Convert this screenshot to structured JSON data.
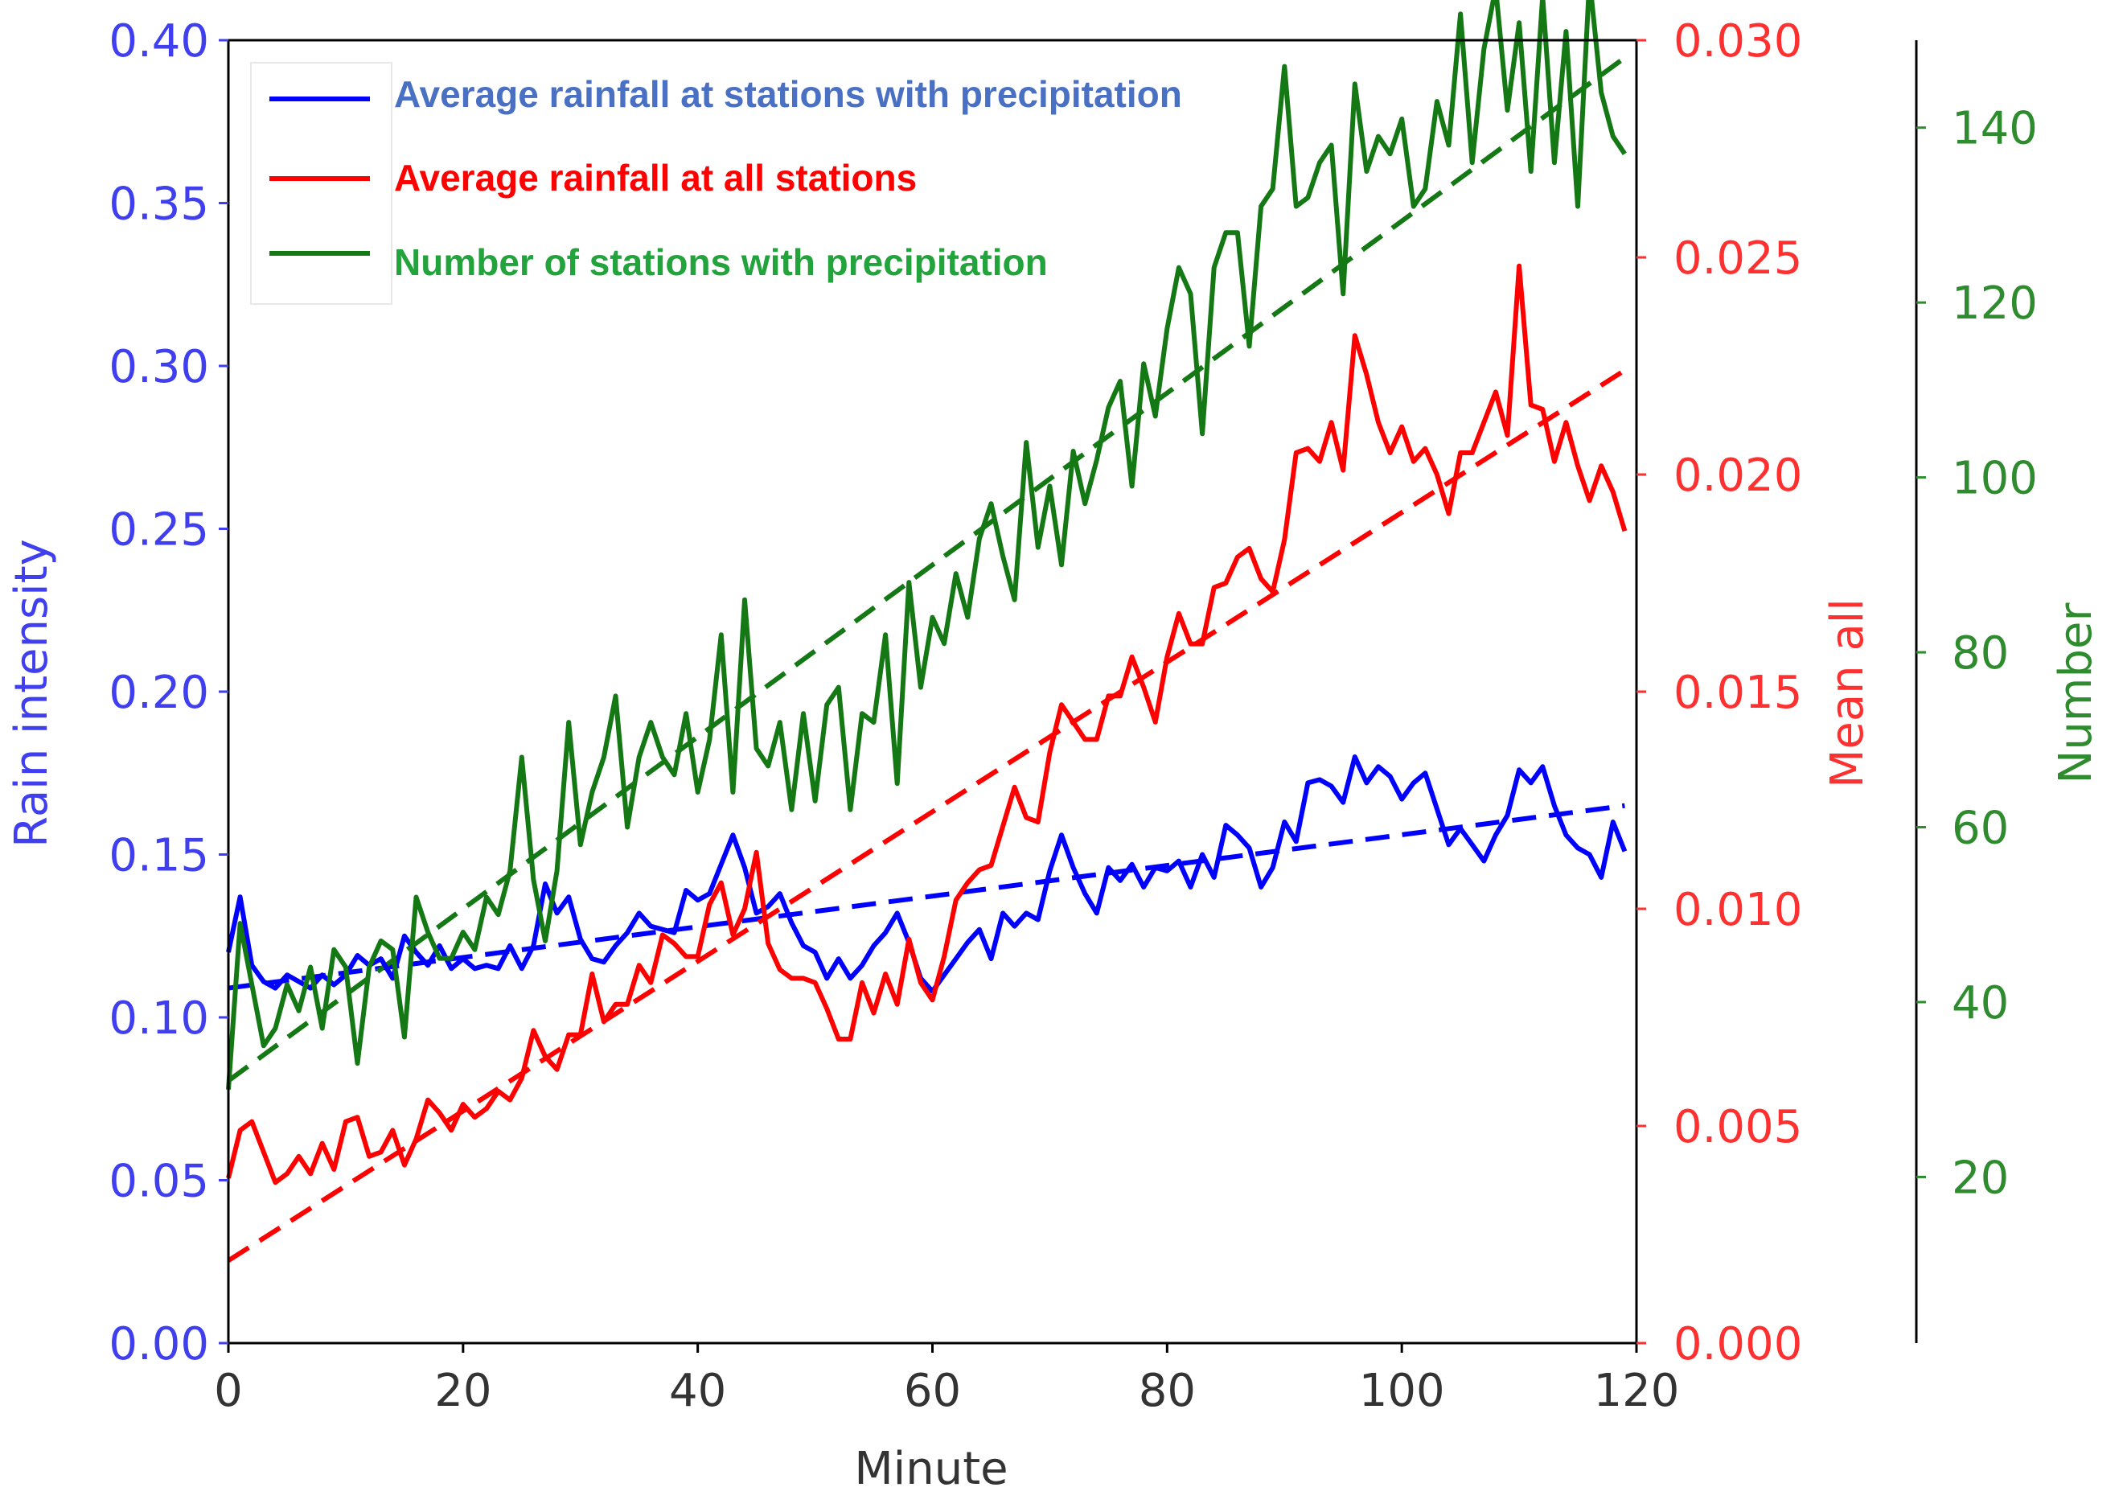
{
  "chart_data": {
    "type": "line",
    "xlabel": "Minute",
    "x": [
      0,
      1,
      2,
      3,
      4,
      5,
      6,
      7,
      8,
      9,
      10,
      11,
      12,
      13,
      14,
      15,
      16,
      17,
      18,
      19,
      20,
      21,
      22,
      23,
      24,
      25,
      26,
      27,
      28,
      29,
      30,
      31,
      32,
      33,
      34,
      35,
      36,
      37,
      38,
      39,
      40,
      41,
      42,
      43,
      44,
      45,
      46,
      47,
      48,
      49,
      50,
      51,
      52,
      53,
      54,
      55,
      56,
      57,
      58,
      59,
      60,
      61,
      62,
      63,
      64,
      65,
      66,
      67,
      68,
      69,
      70,
      71,
      72,
      73,
      74,
      75,
      76,
      77,
      78,
      79,
      80,
      81,
      82,
      83,
      84,
      85,
      86,
      87,
      88,
      89,
      90,
      91,
      92,
      93,
      94,
      95,
      96,
      97,
      98,
      99,
      100,
      101,
      102,
      103,
      104,
      105,
      106,
      107,
      108,
      109,
      110,
      111,
      112,
      113,
      114,
      115,
      116,
      117,
      118,
      119
    ],
    "xlim": [
      0,
      120
    ],
    "xticks": [
      "0",
      "20",
      "40",
      "60",
      "80",
      "100",
      "120"
    ],
    "axes": [
      {
        "id": "rain",
        "label": "Rain intensity",
        "side": "left",
        "color": "#3f3ff0",
        "ylim": [
          0.0,
          0.4
        ],
        "ticks": [
          "0.00",
          "0.05",
          "0.10",
          "0.15",
          "0.20",
          "0.25",
          "0.30",
          "0.35",
          "0.40"
        ]
      },
      {
        "id": "mean",
        "label": "Mean all",
        "side": "right",
        "color": "#ff3030",
        "ylim": [
          0.0,
          0.03
        ],
        "ticks": [
          "0.000",
          "0.005",
          "0.010",
          "0.015",
          "0.020",
          "0.025",
          "0.030"
        ]
      },
      {
        "id": "number",
        "label": "Number",
        "side": "right-outer",
        "color": "#2e8b2e",
        "ylim": [
          1,
          150
        ],
        "ticks": [
          "20",
          "40",
          "60",
          "80",
          "100",
          "120",
          "140"
        ]
      }
    ],
    "series": [
      {
        "name": "Average rainfall at stations with precipitation",
        "axis": "rain",
        "color": "#0000ff",
        "legend_text_color": "#4a70c4",
        "values": [
          0.12,
          0.137,
          0.116,
          0.111,
          0.109,
          0.113,
          0.111,
          0.109,
          0.113,
          0.11,
          0.113,
          0.119,
          0.116,
          0.118,
          0.112,
          0.125,
          0.12,
          0.116,
          0.122,
          0.115,
          0.118,
          0.115,
          0.116,
          0.115,
          0.122,
          0.115,
          0.122,
          0.141,
          0.132,
          0.137,
          0.124,
          0.118,
          0.117,
          0.122,
          0.126,
          0.132,
          0.128,
          0.127,
          0.126,
          0.139,
          0.136,
          0.138,
          0.147,
          0.156,
          0.146,
          0.132,
          0.134,
          0.138,
          0.129,
          0.122,
          0.12,
          0.112,
          0.118,
          0.112,
          0.116,
          0.122,
          0.126,
          0.132,
          0.123,
          0.112,
          0.108,
          0.113,
          0.118,
          0.123,
          0.127,
          0.118,
          0.132,
          0.128,
          0.132,
          0.13,
          0.145,
          0.156,
          0.146,
          0.138,
          0.132,
          0.146,
          0.142,
          0.147,
          0.14,
          0.146,
          0.145,
          0.148,
          0.14,
          0.15,
          0.143,
          0.159,
          0.156,
          0.152,
          0.14,
          0.146,
          0.16,
          0.154,
          0.172,
          0.173,
          0.171,
          0.166,
          0.18,
          0.172,
          0.177,
          0.174,
          0.167,
          0.172,
          0.175,
          0.164,
          0.153,
          0.158,
          0.153,
          0.148,
          0.156,
          0.162,
          0.176,
          0.172,
          0.177,
          0.165,
          0.156,
          0.152,
          0.15,
          0.143,
          0.16,
          0.151
        ],
        "trend": [
          0.109,
          0.165
        ]
      },
      {
        "name": "Average rainfall at all stations",
        "axis": "mean",
        "color": "#ff0000",
        "legend_text_color": "#ff0000",
        "values": [
          0.0038,
          0.0049,
          0.0051,
          0.0044,
          0.0037,
          0.0039,
          0.0043,
          0.0039,
          0.0046,
          0.004,
          0.0051,
          0.0052,
          0.0043,
          0.0044,
          0.0049,
          0.0041,
          0.0047,
          0.0056,
          0.0053,
          0.0049,
          0.0055,
          0.0052,
          0.0054,
          0.0058,
          0.0056,
          0.0061,
          0.0072,
          0.0066,
          0.0063,
          0.0071,
          0.0071,
          0.0085,
          0.0074,
          0.0078,
          0.0078,
          0.0087,
          0.0083,
          0.0094,
          0.0092,
          0.0089,
          0.0089,
          0.0101,
          0.0106,
          0.0094,
          0.01,
          0.0113,
          0.0092,
          0.0086,
          0.0084,
          0.0084,
          0.0083,
          0.0077,
          0.007,
          0.007,
          0.0083,
          0.0076,
          0.0085,
          0.0078,
          0.0093,
          0.0083,
          0.0079,
          0.0089,
          0.0102,
          0.0106,
          0.0109,
          0.011,
          0.0119,
          0.0128,
          0.0121,
          0.012,
          0.0136,
          0.0147,
          0.0143,
          0.0139,
          0.0139,
          0.0149,
          0.0149,
          0.0158,
          0.0151,
          0.0143,
          0.0158,
          0.0168,
          0.0161,
          0.0161,
          0.0174,
          0.0175,
          0.0181,
          0.0183,
          0.0176,
          0.0173,
          0.0185,
          0.0205,
          0.0206,
          0.0203,
          0.0212,
          0.0201,
          0.0232,
          0.0223,
          0.0212,
          0.0205,
          0.0211,
          0.0203,
          0.0206,
          0.02,
          0.0191,
          0.0205,
          0.0205,
          0.0212,
          0.0219,
          0.0209,
          0.0248,
          0.0216,
          0.0215,
          0.0203,
          0.0212,
          0.0202,
          0.0194,
          0.0202,
          0.0196,
          0.0187
        ],
        "trend": [
          0.0019,
          0.0224
        ]
      },
      {
        "name": "Number of stations with precipitation",
        "axis": "number",
        "color": "#147814",
        "legend_text_color": "#22a33c",
        "values": [
          30,
          49,
          42,
          35,
          37,
          42,
          39,
          44,
          37,
          46,
          44,
          33,
          44,
          47,
          46,
          36,
          52,
          48,
          45,
          45,
          48,
          46,
          52,
          50,
          55,
          68,
          54,
          47,
          55,
          72,
          58,
          64,
          68,
          75,
          60,
          68,
          72,
          68,
          66,
          73,
          64,
          70,
          82,
          64,
          86,
          69,
          67,
          72,
          62,
          73,
          63,
          74,
          76,
          62,
          73,
          72,
          82,
          65,
          88,
          76,
          84,
          81,
          89,
          84,
          93,
          97,
          91,
          86,
          104,
          92,
          99,
          90,
          103,
          97,
          102,
          108,
          111,
          99,
          113,
          107,
          117,
          124,
          121,
          105,
          124,
          128,
          128,
          115,
          131,
          133,
          147,
          131,
          132,
          136,
          138,
          121,
          145,
          135,
          139,
          137,
          141,
          131,
          133,
          143,
          138,
          153,
          136,
          149,
          156,
          142,
          152,
          135,
          155,
          136,
          151,
          131,
          157,
          144,
          139,
          137
        ],
        "trend": [
          31,
          148
        ]
      }
    ]
  }
}
